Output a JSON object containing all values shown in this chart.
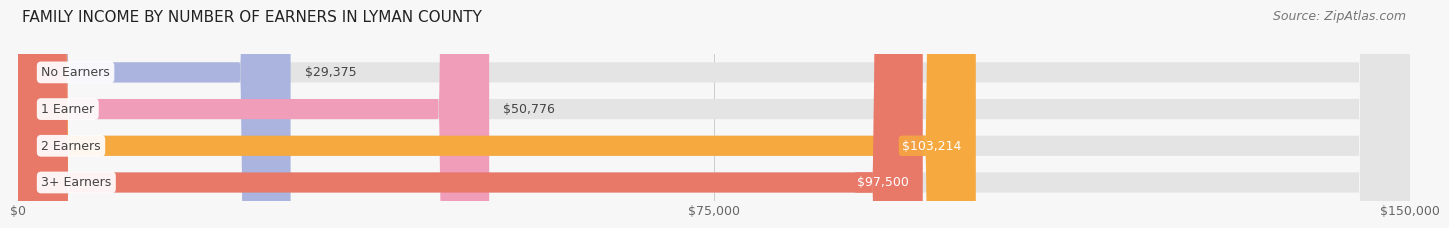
{
  "title": "FAMILY INCOME BY NUMBER OF EARNERS IN LYMAN COUNTY",
  "source": "Source: ZipAtlas.com",
  "categories": [
    "No Earners",
    "1 Earner",
    "2 Earners",
    "3+ Earners"
  ],
  "values": [
    29375,
    50776,
    103214,
    97500
  ],
  "bar_colors": [
    "#aab4df",
    "#f09dba",
    "#f5a93e",
    "#e87868"
  ],
  "bar_bg_color": "#e4e4e4",
  "value_labels": [
    "$29,375",
    "$50,776",
    "$103,214",
    "$97,500"
  ],
  "value_inside": [
    false,
    false,
    true,
    true
  ],
  "xlim": [
    0,
    150000
  ],
  "xticks": [
    0,
    75000,
    150000
  ],
  "xtick_labels": [
    "$0",
    "$75,000",
    "$150,000"
  ],
  "background_color": "#f7f7f7",
  "title_fontsize": 11,
  "source_fontsize": 9,
  "label_fontsize": 9,
  "value_fontsize": 9
}
